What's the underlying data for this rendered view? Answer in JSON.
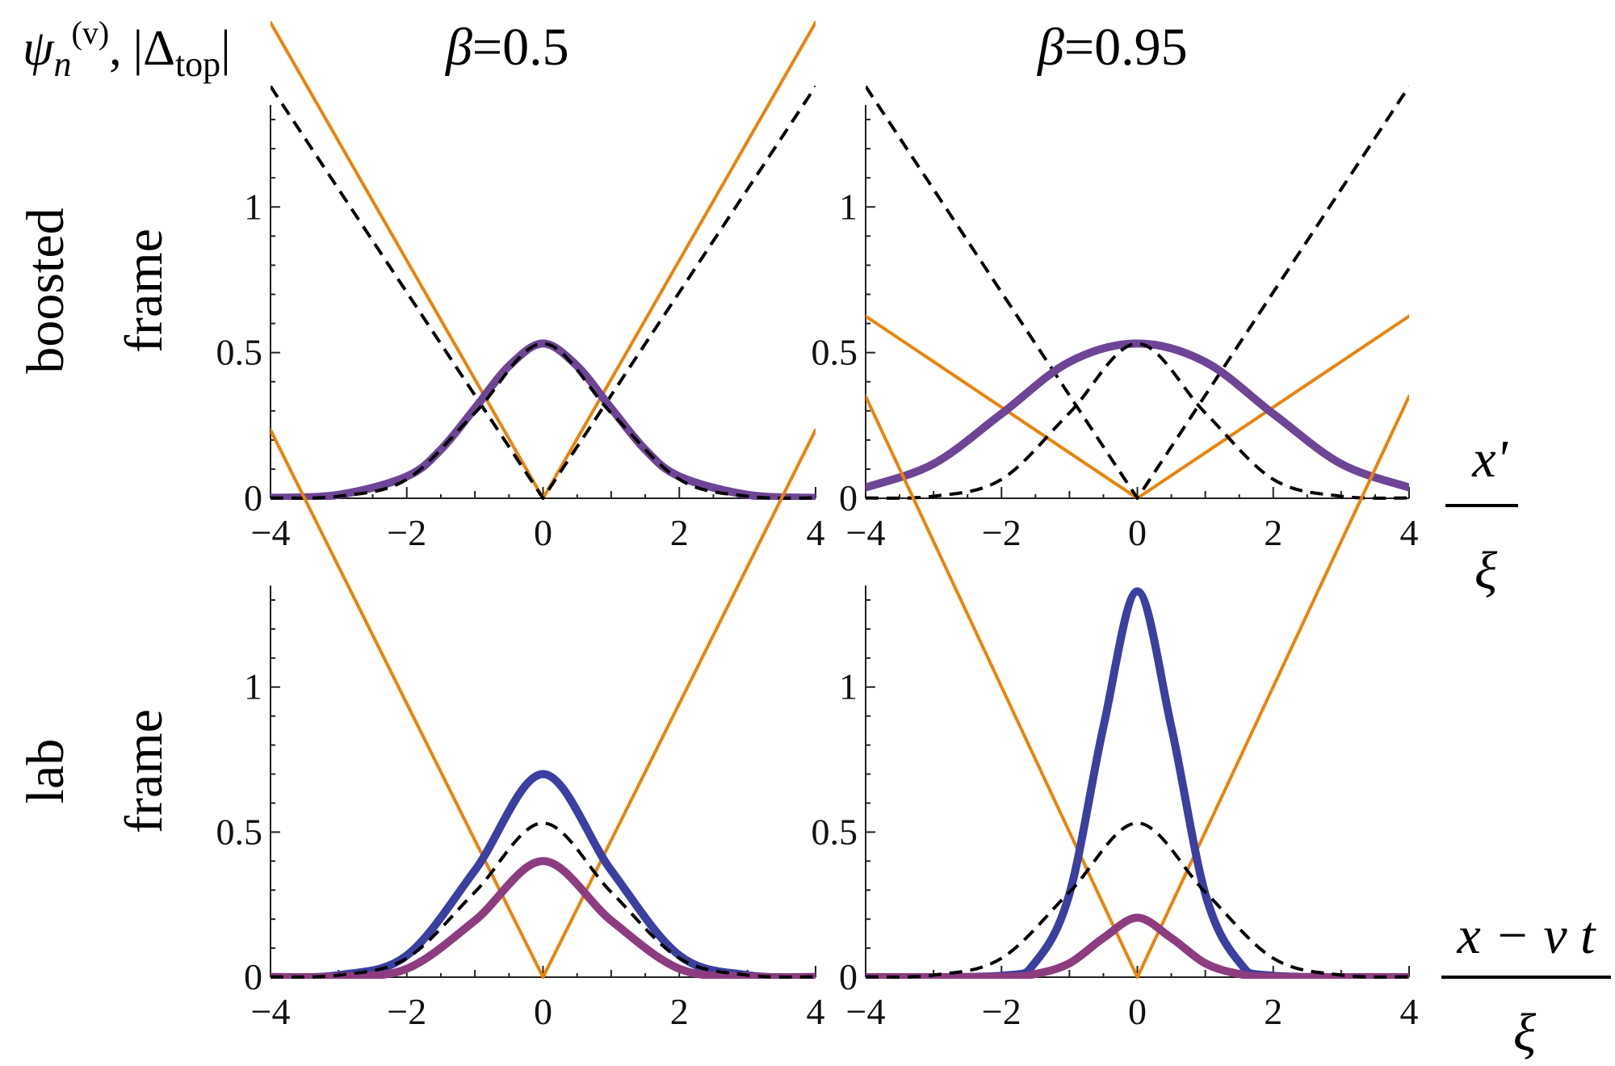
{
  "figure": {
    "ylabel_corner": {
      "psi": "ψ",
      "n": "n",
      "v_sup": "(v)",
      "sep": ",",
      "delta_open": "|Δ",
      "top": "top",
      "delta_close": "|"
    },
    "column_titles": [
      {
        "beta": "β",
        "text": "=0.5"
      },
      {
        "beta": "β",
        "text": "=0.95"
      }
    ],
    "row_labels": [
      {
        "line1": "boosted",
        "line2": "frame"
      },
      {
        "line1": "lab",
        "line2": "frame"
      }
    ],
    "xlabels": [
      {
        "numerator": "x'",
        "denominator": "ξ"
      },
      {
        "numerator": "x − v t",
        "denominator": "ξ"
      }
    ]
  },
  "colors": {
    "orange": "#E8840C",
    "purple": "#6E4596",
    "blue": "#3B3FA0",
    "magenta": "#8E3C80",
    "dashed": "#000000"
  },
  "chart_data": [
    {
      "type": "line",
      "panel": "boosted frame, β=0.5",
      "xlim": [
        -4,
        4
      ],
      "ylim": [
        0,
        1.35
      ],
      "xticks": [
        "−4",
        "−2",
        "0",
        "2",
        "4"
      ],
      "yticks": [
        "0",
        "0.5",
        "1"
      ],
      "series": [
        {
          "style": "orange-solid",
          "x": [
            -4,
            0,
            4
          ],
          "y": [
            1.633,
            0,
            1.633
          ]
        },
        {
          "style": "dashed-v",
          "x": [
            -4,
            0,
            4
          ],
          "y": [
            1.414,
            0,
            1.414
          ]
        },
        {
          "style": "purple-thick",
          "x": [
            -4,
            -3,
            -2,
            -1.5,
            -1,
            -0.5,
            0,
            0.5,
            1,
            1.5,
            2,
            3,
            4
          ],
          "y": [
            0.0017,
            0.0118,
            0.075,
            0.167,
            0.309,
            0.454,
            0.531,
            0.454,
            0.309,
            0.167,
            0.075,
            0.0118,
            0.0017
          ]
        },
        {
          "style": "dashed-bump",
          "x": [
            -4,
            -3,
            -2,
            -1,
            0,
            1,
            2,
            3,
            4
          ],
          "y": [
            0.0007,
            0.007,
            0.065,
            0.293,
            0.531,
            0.293,
            0.065,
            0.007,
            0.0007
          ]
        }
      ]
    },
    {
      "type": "line",
      "panel": "boosted frame, β=0.95",
      "xlim": [
        -4,
        4
      ],
      "ylim": [
        0,
        1.35
      ],
      "xticks": [
        "−4",
        "−2",
        "0",
        "2",
        "4"
      ],
      "yticks": [
        "0",
        "0.5",
        "1"
      ],
      "series": [
        {
          "style": "orange-solid",
          "x": [
            -4,
            0,
            4
          ],
          "y": [
            0.625,
            0,
            0.625
          ]
        },
        {
          "style": "dashed-v",
          "x": [
            -4,
            0,
            4
          ],
          "y": [
            1.414,
            0,
            1.414
          ]
        },
        {
          "style": "purple-thick",
          "x": [
            -4,
            -3,
            -2,
            -1,
            0,
            1,
            2,
            3,
            4
          ],
          "y": [
            0.037,
            0.118,
            0.29,
            0.468,
            0.531,
            0.468,
            0.29,
            0.118,
            0.037
          ]
        },
        {
          "style": "dashed-bump",
          "x": [
            -4,
            -3,
            -2,
            -1,
            0,
            1,
            2,
            3,
            4
          ],
          "y": [
            0.0007,
            0.007,
            0.065,
            0.293,
            0.531,
            0.293,
            0.065,
            0.007,
            0.0007
          ]
        }
      ]
    },
    {
      "type": "line",
      "panel": "lab frame, β=0.5",
      "xlim": [
        -4,
        4
      ],
      "ylim": [
        0,
        1.35
      ],
      "xticks": [
        "−4",
        "−2",
        "0",
        "2",
        "4"
      ],
      "yticks": [
        "0",
        "0.5",
        "1"
      ],
      "series": [
        {
          "style": "orange-solid",
          "x": [
            -4,
            0,
            4
          ],
          "y": [
            1.886,
            0,
            1.886
          ]
        },
        {
          "style": "blue-thick",
          "x": [
            -4,
            -3,
            -2,
            -1,
            0,
            1,
            2,
            3,
            4
          ],
          "y": [
            0.0005,
            0.007,
            0.075,
            0.368,
            0.7,
            0.368,
            0.075,
            0.007,
            0.0005
          ]
        },
        {
          "style": "magenta-thick",
          "x": [
            -4,
            -3,
            -2,
            -1,
            0,
            1,
            2,
            3,
            4
          ],
          "y": [
            0.0002,
            0.002,
            0.029,
            0.195,
            0.4,
            0.195,
            0.029,
            0.002,
            0.0002
          ]
        },
        {
          "style": "dashed-bump",
          "x": [
            -4,
            -3,
            -2,
            -1,
            0,
            1,
            2,
            3,
            4
          ],
          "y": [
            0.0007,
            0.007,
            0.065,
            0.293,
            0.531,
            0.293,
            0.065,
            0.007,
            0.0007
          ]
        }
      ]
    },
    {
      "type": "line",
      "panel": "lab frame, β=0.95",
      "xlim": [
        -4,
        4
      ],
      "ylim": [
        0,
        1.35
      ],
      "xticks": [
        "−4",
        "−2",
        "0",
        "2",
        "4"
      ],
      "yticks": [
        "0",
        "0.5",
        "1"
      ],
      "series": [
        {
          "style": "orange-solid",
          "x": [
            -4,
            0,
            4
          ],
          "y": [
            2.002,
            0,
            2.002
          ]
        },
        {
          "style": "blue-thick",
          "x": [
            -4,
            -2,
            -1.5,
            -1,
            -0.5,
            0,
            0.5,
            1,
            1.5,
            2,
            4
          ],
          "y": [
            0,
            0.005,
            0.052,
            0.287,
            0.862,
            1.33,
            0.862,
            0.287,
            0.052,
            0.005,
            0
          ]
        },
        {
          "style": "magenta-thick",
          "x": [
            -4,
            -2,
            -1.5,
            -1,
            -0.5,
            0,
            0.5,
            1,
            1.5,
            2,
            4
          ],
          "y": [
            0,
            0.001,
            0.011,
            0.048,
            0.135,
            0.205,
            0.135,
            0.048,
            0.011,
            0.001,
            0
          ]
        },
        {
          "style": "dashed-bump",
          "x": [
            -4,
            -3,
            -2,
            -1,
            0,
            1,
            2,
            3,
            4
          ],
          "y": [
            0.0007,
            0.007,
            0.065,
            0.293,
            0.531,
            0.293,
            0.065,
            0.007,
            0.0007
          ]
        }
      ]
    }
  ]
}
